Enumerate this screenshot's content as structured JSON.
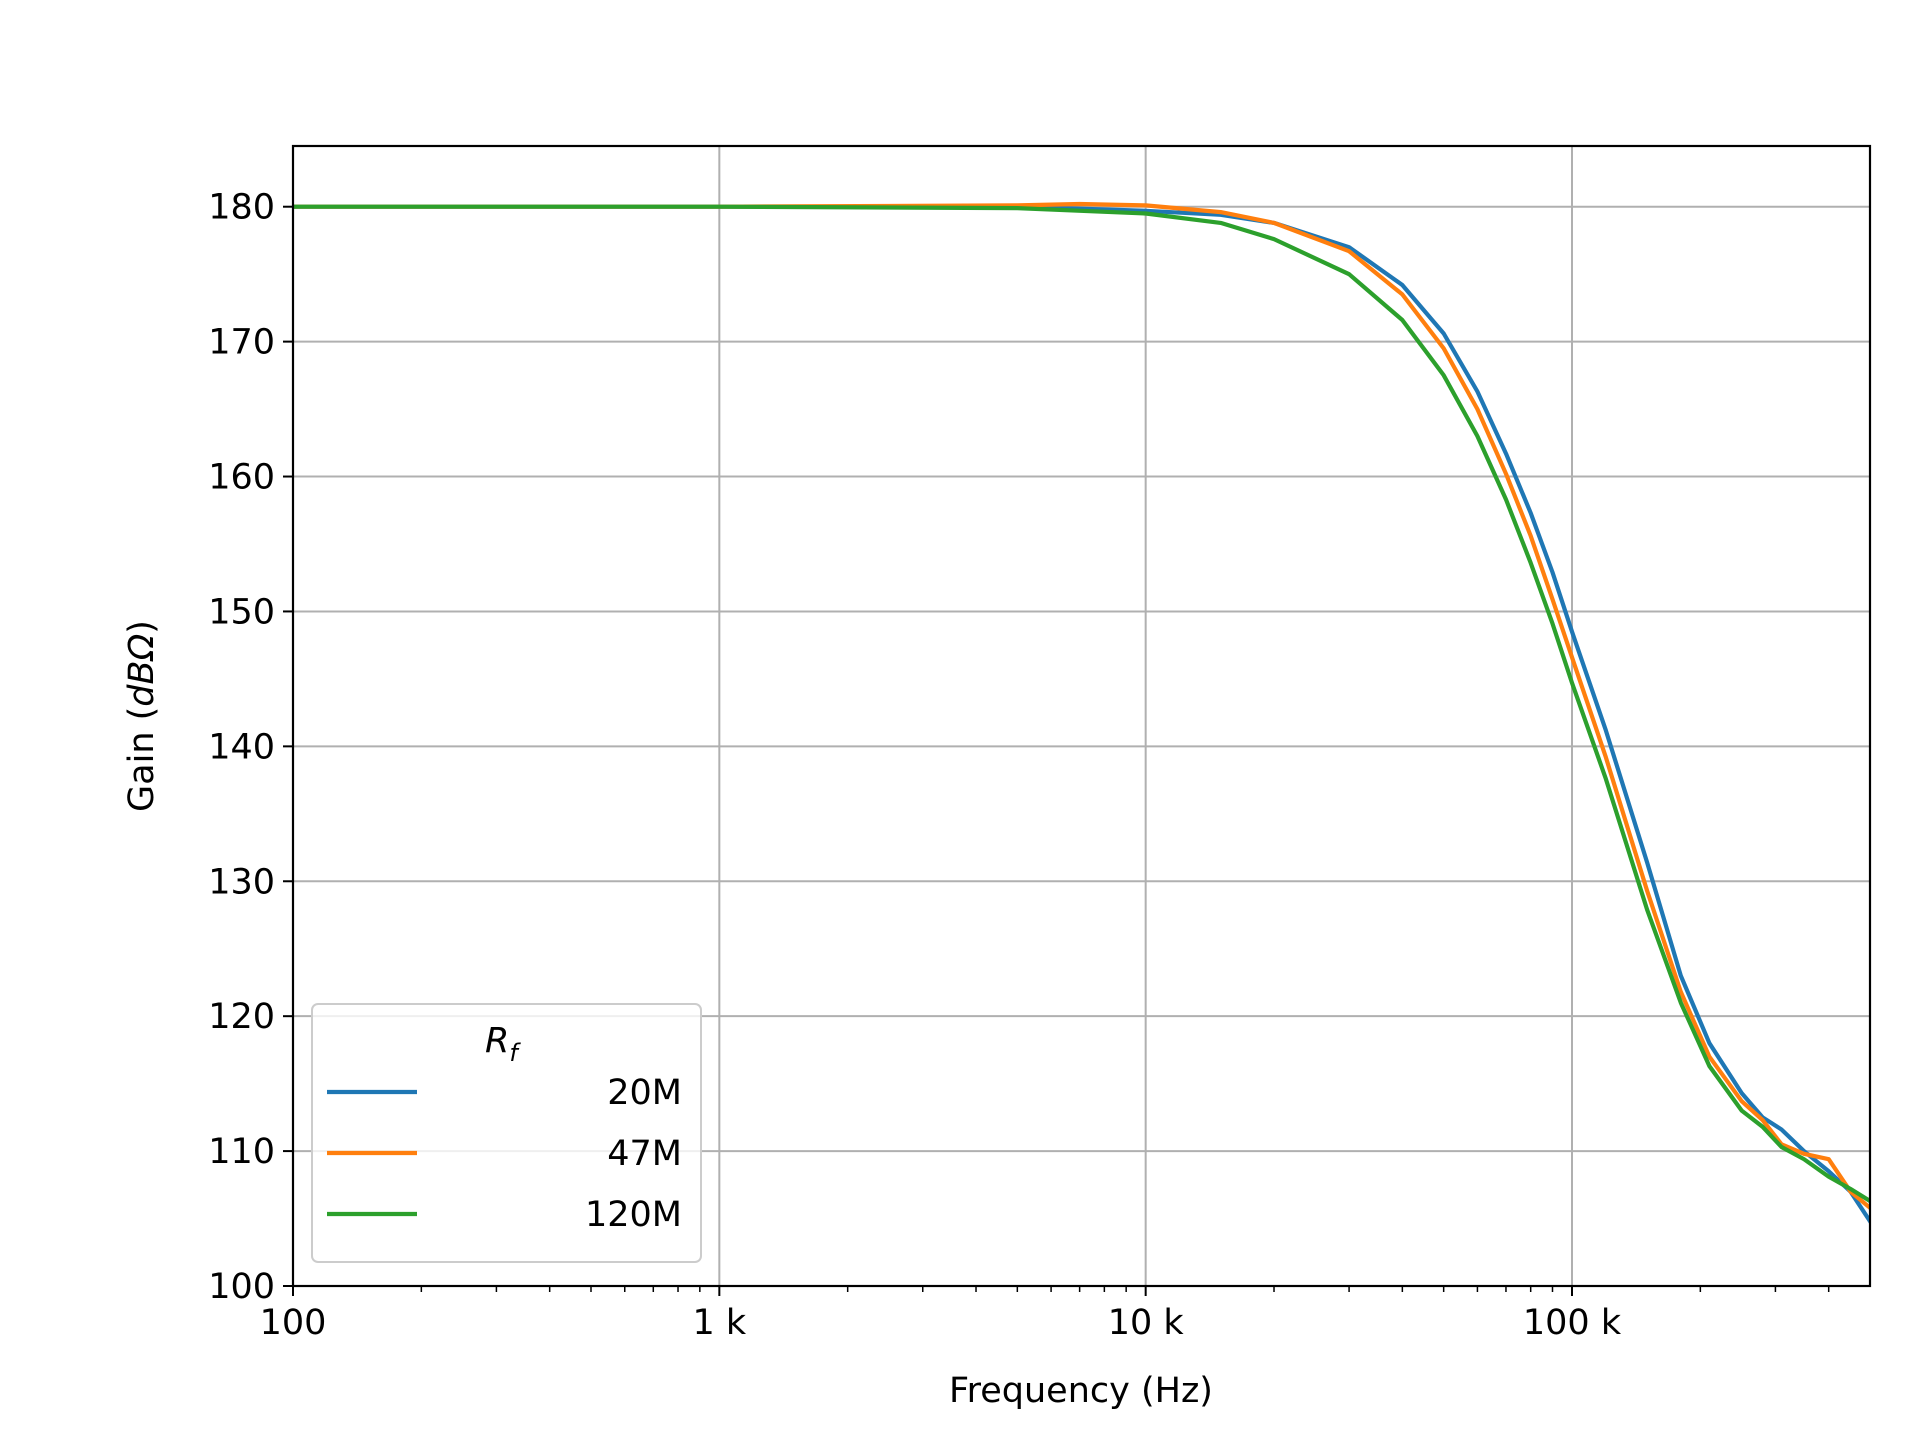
{
  "chart_data": {
    "type": "line",
    "xlabel": "Frequency (Hz)",
    "ylabel_prefix": "Gain (",
    "ylabel_unit": "dBΩ",
    "ylabel_suffix": ")",
    "xscale": "log",
    "xlim": [
      100,
      500000
    ],
    "ylim": [
      100,
      184.5
    ],
    "grid": true,
    "x_ticks": [
      100,
      1000,
      10000,
      100000
    ],
    "x_tick_labels": [
      "100",
      "1 k",
      "10 k",
      "100 k"
    ],
    "y_ticks": [
      100,
      110,
      120,
      130,
      140,
      150,
      160,
      170,
      180
    ],
    "y_tick_labels": [
      "100",
      "110",
      "120",
      "130",
      "140",
      "150",
      "160",
      "170",
      "180"
    ],
    "legend": {
      "title_main": "R",
      "title_sub": "f",
      "position": "lower-left"
    },
    "series": [
      {
        "name": "20M",
        "color": "#1f77b4",
        "x": [
          100,
          1000,
          5000,
          10000,
          15000,
          20000,
          30000,
          40000,
          50000,
          60000,
          70000,
          80000,
          90000,
          100000,
          120000,
          150000,
          180000,
          210000,
          250000,
          280000,
          310000,
          350000,
          400000,
          450000,
          500000
        ],
        "y": [
          180,
          180,
          180,
          179.7,
          179.4,
          178.8,
          177.0,
          174.2,
          170.6,
          166.3,
          161.7,
          157.3,
          152.9,
          148.5,
          141.2,
          131.4,
          123.0,
          118.0,
          114.3,
          112.5,
          111.6,
          110.0,
          108.5,
          107.0,
          104.8
        ]
      },
      {
        "name": "47M",
        "color": "#ff7f0e",
        "x": [
          100,
          1000,
          5000,
          7000,
          10000,
          15000,
          20000,
          30000,
          40000,
          50000,
          60000,
          70000,
          80000,
          90000,
          100000,
          120000,
          150000,
          180000,
          210000,
          250000,
          280000,
          310000,
          350000,
          400000,
          450000,
          500000
        ],
        "y": [
          180,
          180,
          180.1,
          180.2,
          180.1,
          179.6,
          178.8,
          176.7,
          173.5,
          169.5,
          165.0,
          160.2,
          155.6,
          150.9,
          146.6,
          139.2,
          129.3,
          121.8,
          117.0,
          113.7,
          112.3,
          110.5,
          109.8,
          109.4,
          107.0,
          105.8
        ]
      },
      {
        "name": "120M",
        "color": "#2ca02c",
        "x": [
          100,
          1000,
          5000,
          10000,
          15000,
          20000,
          30000,
          40000,
          50000,
          60000,
          70000,
          80000,
          90000,
          100000,
          120000,
          150000,
          180000,
          210000,
          250000,
          280000,
          310000,
          350000,
          400000,
          450000,
          500000
        ],
        "y": [
          180,
          180,
          179.9,
          179.5,
          178.8,
          177.6,
          175.0,
          171.6,
          167.5,
          163.0,
          158.3,
          153.6,
          149.1,
          144.7,
          137.6,
          127.9,
          121.0,
          116.3,
          113.0,
          111.8,
          110.3,
          109.4,
          108.1,
          107.2,
          106.3
        ]
      }
    ]
  }
}
